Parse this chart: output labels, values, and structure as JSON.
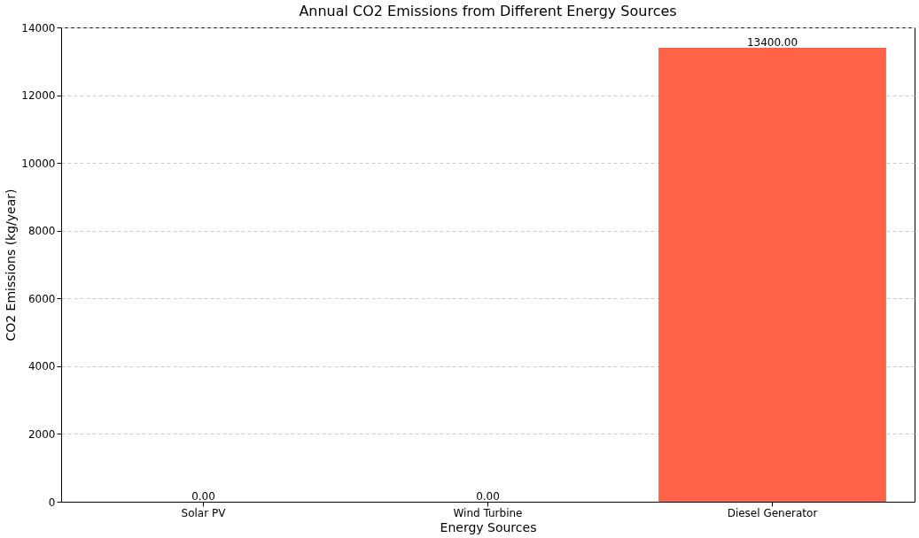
{
  "chart_data": {
    "type": "bar",
    "title": "Annual CO2 Emissions from Different Energy Sources",
    "xlabel": "Energy Sources",
    "ylabel": "CO2 Emissions (kg/year)",
    "categories": [
      "Solar PV",
      "Wind Turbine",
      "Diesel Generator"
    ],
    "values": [
      0,
      0,
      13400
    ],
    "color": "#ff6347",
    "value_labels": [
      "0.00",
      "0.00",
      "13400.00"
    ],
    "ylim": [
      0,
      14000
    ],
    "yticks": [
      0,
      2000,
      4000,
      6000,
      8000,
      10000,
      12000,
      14000
    ],
    "grid": "y"
  }
}
